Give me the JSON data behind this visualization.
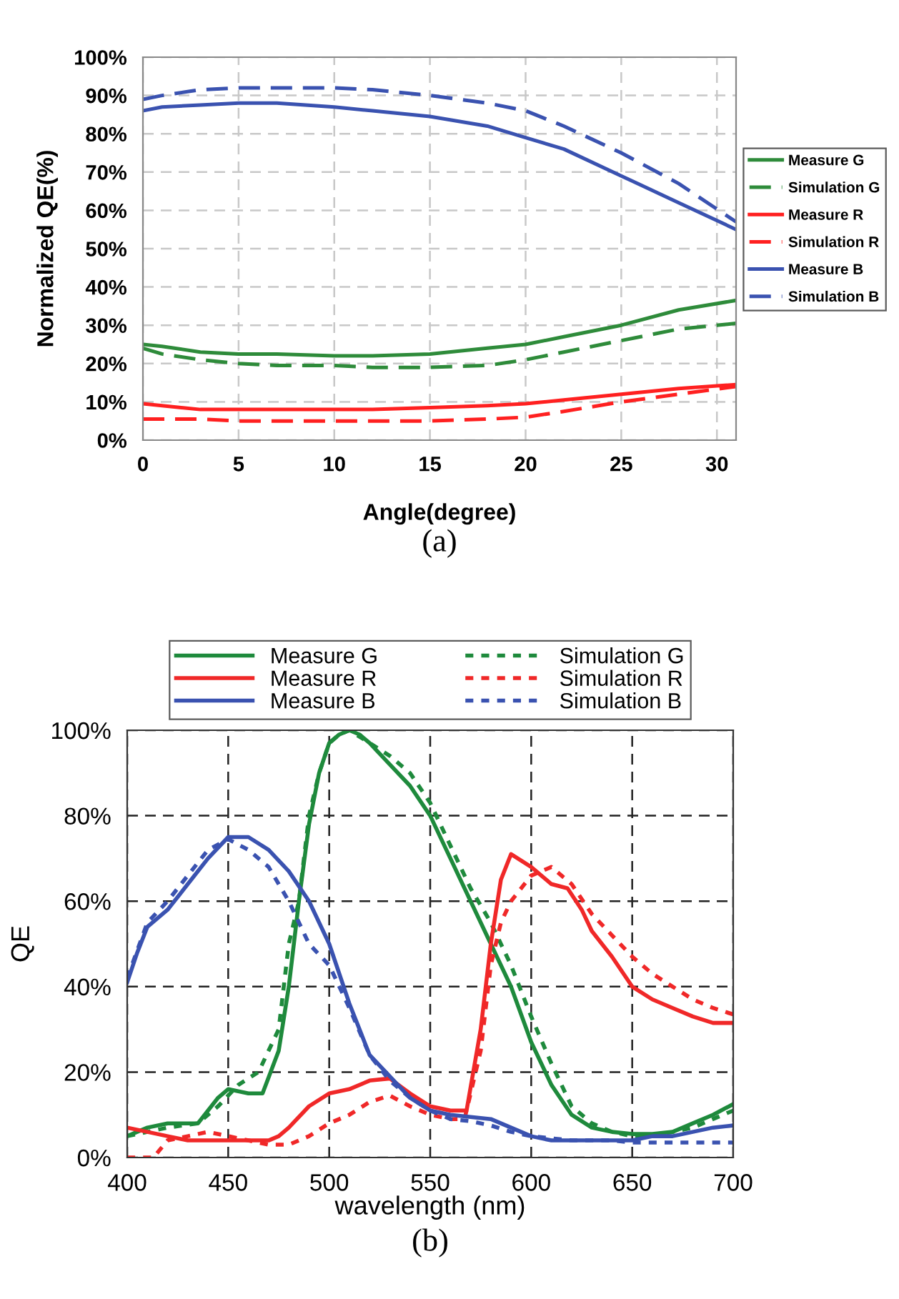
{
  "chart_data": [
    {
      "type": "line",
      "xlabel": "Angle(degree)",
      "ylabel": "Normalized QE(%)",
      "annotations": [
        "(a)"
      ],
      "xlim": [
        0,
        31
      ],
      "xticks": [
        0,
        5,
        10,
        15,
        20,
        25,
        30
      ],
      "ylim": [
        0,
        100
      ],
      "yticks": [
        {
          "value": 0,
          "label": "0%"
        },
        {
          "value": 10,
          "label": "10%"
        },
        {
          "value": 20,
          "label": "20%"
        },
        {
          "value": 30,
          "label": "30%"
        },
        {
          "value": 40,
          "label": "40%"
        },
        {
          "value": 50,
          "label": "50%"
        },
        {
          "value": 60,
          "label": "60%"
        },
        {
          "value": 70,
          "label": "70%"
        },
        {
          "value": 80,
          "label": "80%"
        },
        {
          "value": 90,
          "label": "90%"
        },
        {
          "value": 100,
          "label": "100%"
        }
      ],
      "grid": true,
      "legend": "right",
      "marker": "none",
      "x": [
        0,
        1,
        3,
        5,
        7,
        10,
        12,
        15,
        18,
        20,
        22,
        25,
        28,
        31
      ],
      "series": [
        {
          "name": "Measure G",
          "color": "#2e8b3a",
          "line_style": "solid",
          "values": [
            25,
            24.5,
            23,
            22.5,
            22.5,
            22,
            22,
            22.5,
            24,
            25,
            27,
            30,
            34,
            36.5
          ]
        },
        {
          "name": "Simulation G",
          "color": "#2e8b3a",
          "line_style": "dashed",
          "values": [
            24,
            22.5,
            21,
            20,
            19.5,
            19.5,
            19,
            19,
            19.5,
            21,
            23,
            26,
            29,
            30.5
          ]
        },
        {
          "name": "Measure R",
          "color": "#ff2020",
          "line_style": "solid",
          "values": [
            9.5,
            9,
            8,
            8,
            8,
            8,
            8,
            8.5,
            9,
            9.5,
            10.5,
            12,
            13.5,
            14.5
          ]
        },
        {
          "name": "Simulation R",
          "color": "#ff2020",
          "line_style": "dashed",
          "values": [
            5.5,
            5.5,
            5.5,
            5,
            5,
            5,
            5,
            5,
            5.5,
            6,
            7.5,
            10,
            12,
            14
          ]
        },
        {
          "name": "Measure B",
          "color": "#3a52b0",
          "line_style": "solid",
          "values": [
            86,
            87,
            87.5,
            88,
            88,
            87,
            86,
            84.5,
            82,
            79,
            76,
            69,
            62,
            55
          ]
        },
        {
          "name": "Simulation B",
          "color": "#3a52b0",
          "line_style": "dashed",
          "values": [
            89,
            90,
            91.5,
            92,
            92,
            92,
            91.5,
            90,
            88,
            86,
            82,
            75,
            67,
            57
          ]
        }
      ]
    },
    {
      "type": "line",
      "xlabel": "wavelength (nm)",
      "ylabel": "QE",
      "annotations": [
        "(b)"
      ],
      "xlim": [
        400,
        700
      ],
      "xticks": [
        400,
        450,
        500,
        550,
        600,
        650,
        700
      ],
      "ylim": [
        0,
        100
      ],
      "yticks": [
        {
          "value": 0,
          "label": "0%"
        },
        {
          "value": 20,
          "label": "20%"
        },
        {
          "value": 40,
          "label": "40%"
        },
        {
          "value": 60,
          "label": "60%"
        },
        {
          "value": 80,
          "label": "80%"
        },
        {
          "value": 100,
          "label": "100%"
        }
      ],
      "grid": true,
      "legend": "top",
      "marker": "none",
      "series": [
        {
          "name": "Measure G",
          "color": "#1e8a3c",
          "line_style": "solid",
          "x": [
            400,
            410,
            420,
            435,
            445,
            450,
            460,
            467,
            475,
            480,
            485,
            490,
            495,
            500,
            505,
            510,
            515,
            520,
            530,
            540,
            550,
            560,
            570,
            580,
            590,
            600,
            610,
            620,
            630,
            640,
            650,
            660,
            670,
            680,
            690,
            700
          ],
          "values": [
            5,
            7,
            8,
            8,
            14,
            16,
            15,
            15,
            25,
            40,
            60,
            78,
            90,
            97,
            99,
            100,
            99,
            97,
            92,
            87,
            80,
            70,
            60,
            50,
            40,
            27,
            17,
            10,
            7,
            6,
            5.5,
            5.5,
            6,
            8,
            10,
            12.5
          ]
        },
        {
          "name": "Simulation G",
          "color": "#1e8a3c",
          "line_style": "dotted",
          "x": [
            400,
            410,
            420,
            435,
            445,
            455,
            465,
            475,
            480,
            485,
            490,
            495,
            500,
            505,
            510,
            520,
            530,
            540,
            550,
            560,
            570,
            580,
            590,
            600,
            610,
            620,
            630,
            640,
            650,
            660,
            670,
            680,
            690,
            700
          ],
          "values": [
            5,
            6,
            7,
            8,
            12,
            17,
            20,
            30,
            50,
            60,
            80,
            90,
            97,
            99,
            100,
            97,
            94,
            90,
            83,
            73,
            63,
            55,
            45,
            33,
            22,
            12,
            8,
            6,
            5,
            5,
            6,
            7,
            9,
            11
          ]
        },
        {
          "name": "Measure R",
          "color": "#f02828",
          "line_style": "solid",
          "x": [
            400,
            410,
            420,
            430,
            450,
            470,
            475,
            480,
            490,
            500,
            510,
            520,
            530,
            540,
            550,
            560,
            568,
            575,
            580,
            585,
            590,
            600,
            610,
            618,
            625,
            630,
            640,
            650,
            660,
            670,
            680,
            690,
            700
          ],
          "values": [
            7,
            6,
            5,
            4,
            4,
            4,
            5,
            7,
            12,
            15,
            16,
            18,
            18.5,
            15,
            12,
            11,
            11,
            30,
            50,
            65,
            71,
            68,
            64,
            63,
            58,
            53,
            47,
            40,
            37,
            35,
            33,
            31.5,
            31.5
          ]
        },
        {
          "name": "Simulation R",
          "color": "#f02828",
          "line_style": "dotted",
          "x": [
            400,
            413,
            420,
            430,
            440,
            450,
            460,
            470,
            480,
            490,
            500,
            510,
            520,
            530,
            540,
            550,
            560,
            567,
            575,
            580,
            585,
            590,
            600,
            610,
            620,
            630,
            640,
            650,
            660,
            670,
            680,
            690,
            700
          ],
          "values": [
            0,
            0,
            4,
            5,
            6,
            5,
            4,
            3,
            3,
            5,
            8,
            10,
            13,
            14.5,
            12,
            10,
            9,
            9,
            25,
            45,
            55,
            60,
            66,
            68,
            64,
            57,
            52,
            47,
            43,
            40,
            37,
            35,
            33.5
          ]
        },
        {
          "name": "Measure B",
          "color": "#3a52b0",
          "line_style": "solid",
          "x": [
            400,
            405,
            410,
            420,
            430,
            440,
            450,
            460,
            470,
            480,
            490,
            500,
            510,
            520,
            530,
            540,
            550,
            560,
            570,
            580,
            590,
            600,
            610,
            620,
            640,
            650,
            660,
            670,
            680,
            690,
            700
          ],
          "values": [
            41,
            48,
            54,
            58,
            64,
            70,
            75,
            75,
            72,
            67,
            60,
            50,
            36,
            24,
            19,
            14,
            11,
            10,
            9.5,
            9,
            7,
            5,
            4,
            4,
            4,
            4,
            5,
            5,
            6,
            7,
            7.5
          ]
        },
        {
          "name": "Simulation B",
          "color": "#3a52b0",
          "line_style": "dotted",
          "x": [
            400,
            410,
            420,
            430,
            440,
            450,
            460,
            470,
            480,
            490,
            500,
            510,
            520,
            530,
            540,
            550,
            560,
            570,
            580,
            590,
            600,
            610,
            620,
            640,
            650,
            660,
            680,
            700
          ],
          "values": [
            42,
            55,
            60,
            66,
            72,
            74.5,
            72,
            68,
            60,
            50,
            45,
            35,
            24,
            18,
            14,
            11,
            9,
            8.5,
            7.5,
            6,
            5,
            4.5,
            4,
            4,
            3.5,
            3.5,
            3.5,
            3.5
          ]
        }
      ]
    }
  ]
}
